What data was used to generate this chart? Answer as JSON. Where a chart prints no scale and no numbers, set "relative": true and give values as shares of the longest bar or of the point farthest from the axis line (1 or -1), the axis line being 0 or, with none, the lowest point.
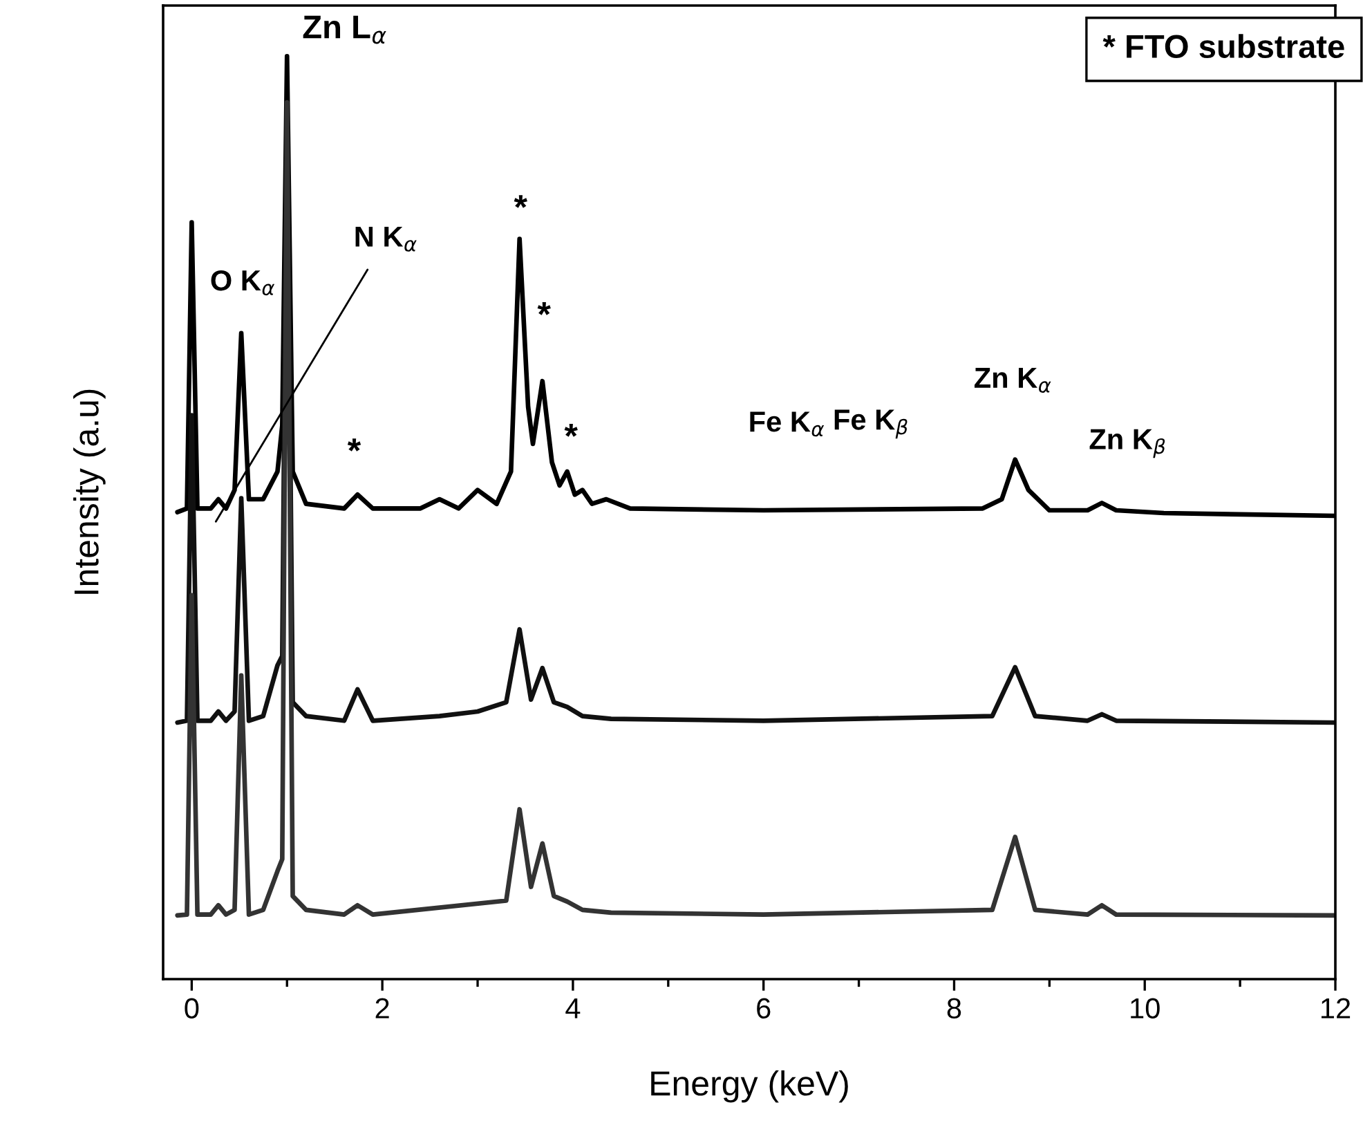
{
  "chart_data": {
    "type": "line",
    "relative": true,
    "xlabel": "Energy (keV)",
    "ylabel": "Intensity (a.u)",
    "xlim": [
      -0.3,
      12
    ],
    "xticks": [
      0,
      {
        "value": 1,
        "label": null
      },
      2,
      {
        "value": 3,
        "label": null
      },
      4,
      {
        "value": 5,
        "label": null
      },
      6,
      {
        "value": 7,
        "label": null
      },
      8,
      {
        "value": 9,
        "label": null
      },
      10,
      {
        "value": 11,
        "label": null
      },
      12
    ],
    "grid": false,
    "legend": false,
    "marker": "none",
    "line_style": "solid",
    "series": [
      {
        "color": "#000000",
        "x": [
          -0.15,
          -0.05,
          0.0,
          0.06,
          0.2,
          0.28,
          0.36,
          0.45,
          0.52,
          0.6,
          0.75,
          0.9,
          0.95,
          1.0,
          1.06,
          1.2,
          1.6,
          1.74,
          1.9,
          2.4,
          2.6,
          2.8,
          3.0,
          3.2,
          3.35,
          3.44,
          3.53,
          3.58,
          3.68,
          3.78,
          3.86,
          3.94,
          4.02,
          4.1,
          4.2,
          4.35,
          4.6,
          6.0,
          8.3,
          8.5,
          8.64,
          8.78,
          9.0,
          9.4,
          9.55,
          9.7,
          10.2,
          12.0
        ],
        "values": [
          0.506,
          0.51,
          0.82,
          0.51,
          0.51,
          0.52,
          0.51,
          0.53,
          0.7,
          0.52,
          0.52,
          0.55,
          0.6,
          1.0,
          0.55,
          0.515,
          0.51,
          0.525,
          0.51,
          0.51,
          0.52,
          0.51,
          0.53,
          0.515,
          0.55,
          0.802,
          0.62,
          0.58,
          0.648,
          0.56,
          0.535,
          0.55,
          0.525,
          0.53,
          0.515,
          0.52,
          0.51,
          0.508,
          0.51,
          0.52,
          0.563,
          0.53,
          0.508,
          0.508,
          0.516,
          0.508,
          0.505,
          0.502
        ]
      },
      {
        "color": "#111111",
        "x": [
          -0.15,
          -0.05,
          0.0,
          0.06,
          0.2,
          0.28,
          0.36,
          0.45,
          0.52,
          0.6,
          0.75,
          0.9,
          0.95,
          1.0,
          1.06,
          1.2,
          1.6,
          1.74,
          1.9,
          2.6,
          3.0,
          3.3,
          3.44,
          3.56,
          3.68,
          3.8,
          3.94,
          4.1,
          4.4,
          6.0,
          8.4,
          8.64,
          8.85,
          9.4,
          9.55,
          9.7,
          12.0
        ],
        "values": [
          0.278,
          0.28,
          0.611,
          0.28,
          0.28,
          0.29,
          0.28,
          0.29,
          0.521,
          0.28,
          0.285,
          0.34,
          0.35,
          0.95,
          0.3,
          0.285,
          0.28,
          0.314,
          0.28,
          0.285,
          0.29,
          0.3,
          0.379,
          0.303,
          0.337,
          0.3,
          0.295,
          0.285,
          0.282,
          0.28,
          0.285,
          0.338,
          0.285,
          0.28,
          0.287,
          0.28,
          0.278
        ]
      },
      {
        "color": "#333333",
        "x": [
          -0.15,
          -0.05,
          0.0,
          0.06,
          0.2,
          0.28,
          0.36,
          0.45,
          0.52,
          0.6,
          0.75,
          0.9,
          0.95,
          1.0,
          1.06,
          1.2,
          1.6,
          1.74,
          1.9,
          3.3,
          3.44,
          3.56,
          3.68,
          3.8,
          3.94,
          4.1,
          4.4,
          6.0,
          8.4,
          8.64,
          8.85,
          9.4,
          9.55,
          9.7,
          12.0
        ],
        "values": [
          0.069,
          0.07,
          0.416,
          0.07,
          0.07,
          0.08,
          0.07,
          0.075,
          0.329,
          0.07,
          0.075,
          0.117,
          0.13,
          0.95,
          0.09,
          0.075,
          0.07,
          0.08,
          0.07,
          0.085,
          0.184,
          0.1,
          0.147,
          0.09,
          0.084,
          0.075,
          0.072,
          0.07,
          0.075,
          0.154,
          0.075,
          0.07,
          0.08,
          0.07,
          0.069
        ]
      }
    ],
    "annotations": [
      "Zn L$_{α}$",
      "O K$_{α}$",
      "N K$_{α}$",
      "*",
      "*",
      "*",
      "*",
      "Fe K$_{α}$",
      "Fe K$_{β}$",
      "Zn K$_{α}$",
      "Zn K$_{β}$",
      "* FTO substrate"
    ]
  }
}
